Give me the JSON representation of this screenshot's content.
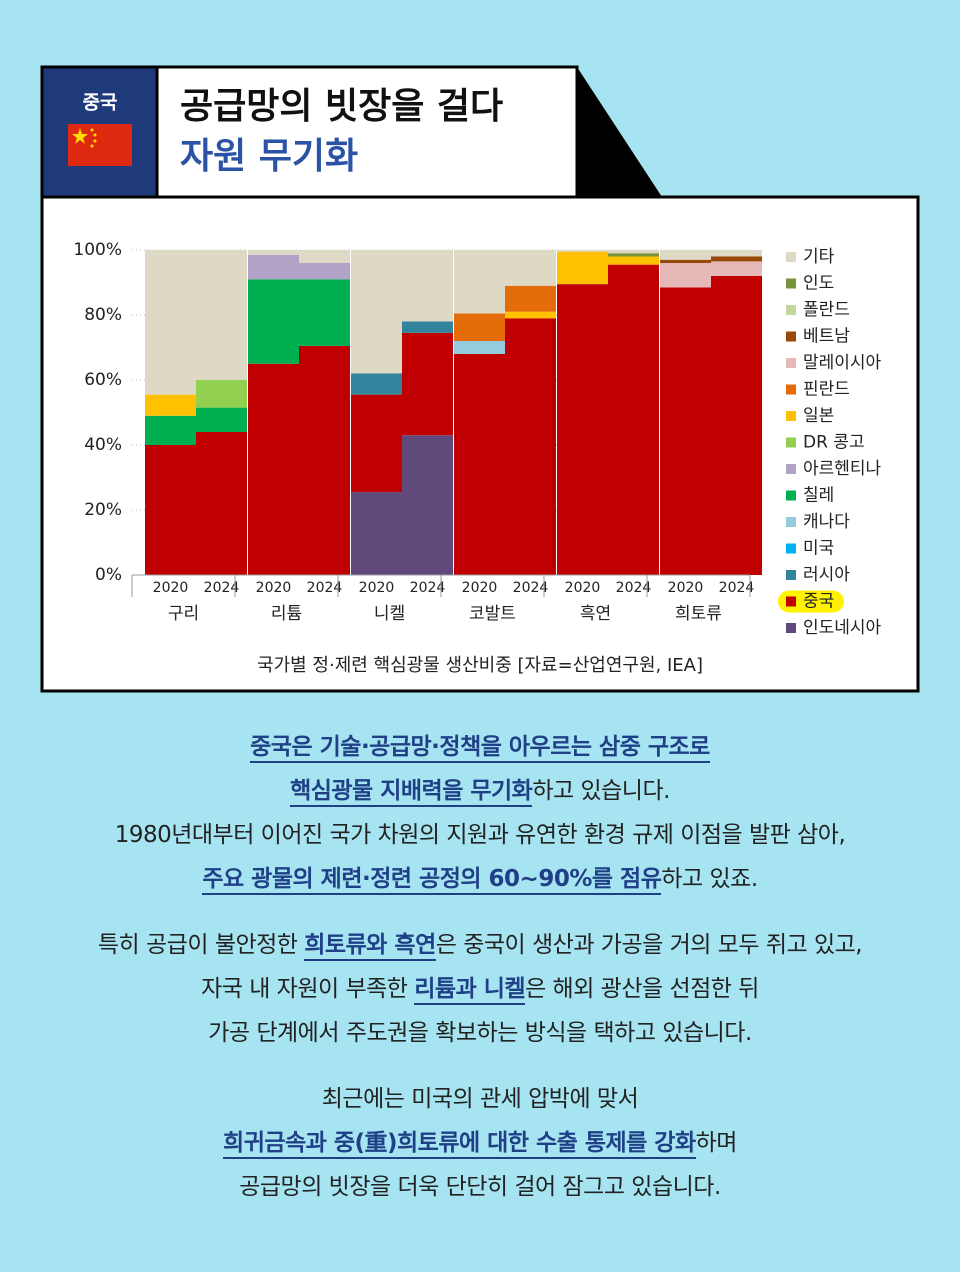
{
  "header": {
    "country": "중국",
    "title": "공급망의 빗장을 걸다",
    "subtitle": "자원 무기화"
  },
  "chart_data": {
    "type": "stacked_bar",
    "categories": [
      "2020",
      "2024",
      "2020",
      "2024",
      "2020",
      "2024",
      "2020",
      "2024",
      "2020",
      "2024",
      "2020",
      "2024"
    ],
    "groups": [
      "구리",
      "리튬",
      "니켈",
      "코발트",
      "흑연",
      "희토류"
    ],
    "caption": "국가별 정·제련 핵심광물 생산비중 [자료=산업연구원, IEA]",
    "ylim": [
      0,
      100
    ],
    "yticks": [
      {
        "value": 0,
        "label": "0%"
      },
      {
        "value": 20,
        "label": "20%"
      },
      {
        "value": 40,
        "label": "40%"
      },
      {
        "value": 60,
        "label": "60%"
      },
      {
        "value": 80,
        "label": "80%"
      },
      {
        "value": 100,
        "label": "100%"
      }
    ],
    "grid": true,
    "legend_position": "right",
    "legend_highlight": 13,
    "series": [
      {
        "name": "기타",
        "color": "#ddd9c4",
        "values": [
          44.5,
          40,
          1.5,
          4,
          38,
          22,
          19.5,
          11,
          0.5,
          1,
          3,
          2
        ]
      },
      {
        "name": "인도",
        "color": "#77933c",
        "values": [
          null,
          null,
          null,
          null,
          null,
          null,
          null,
          null,
          null,
          1,
          null,
          null
        ]
      },
      {
        "name": "폴란드",
        "color": "#c3d69b",
        "values": [
          null,
          null,
          null,
          null,
          null,
          null,
          null,
          null,
          null,
          null,
          null,
          null
        ]
      },
      {
        "name": "베트남",
        "color": "#984807",
        "values": [
          null,
          null,
          null,
          null,
          null,
          null,
          null,
          null,
          null,
          null,
          1,
          1.5
        ]
      },
      {
        "name": "말레이시아",
        "color": "#e6b9b8",
        "values": [
          null,
          null,
          null,
          null,
          null,
          null,
          null,
          null,
          null,
          null,
          7.5,
          4.5
        ]
      },
      {
        "name": "핀란드",
        "color": "#e46c0a",
        "values": [
          null,
          null,
          null,
          null,
          null,
          null,
          8.5,
          8,
          null,
          null,
          null,
          null
        ]
      },
      {
        "name": "일본",
        "color": "#ffc000",
        "values": [
          6.5,
          null,
          null,
          null,
          null,
          null,
          null,
          2,
          10,
          2.5,
          null,
          null
        ]
      },
      {
        "name": "DR 콩고",
        "color": "#92d050",
        "values": [
          null,
          8.5,
          null,
          null,
          null,
          null,
          null,
          null,
          null,
          null,
          null,
          null
        ]
      },
      {
        "name": "아르헨티나",
        "color": "#b3a2c7",
        "values": [
          null,
          null,
          7.5,
          5,
          null,
          null,
          null,
          null,
          null,
          null,
          null,
          null
        ]
      },
      {
        "name": "칠레",
        "color": "#00b050",
        "values": [
          9,
          7.5,
          26,
          20.5,
          null,
          null,
          null,
          null,
          null,
          null,
          null,
          null
        ]
      },
      {
        "name": "캐나다",
        "color": "#93cddd",
        "values": [
          null,
          null,
          null,
          null,
          null,
          null,
          4,
          null,
          null,
          null,
          null,
          null
        ]
      },
      {
        "name": "미국",
        "color": "#00b0f0",
        "values": [
          null,
          null,
          null,
          null,
          null,
          null,
          null,
          null,
          null,
          null,
          null,
          null
        ]
      },
      {
        "name": "러시아",
        "color": "#31849b",
        "values": [
          null,
          null,
          null,
          null,
          6.5,
          3.5,
          null,
          null,
          null,
          null,
          null,
          null
        ]
      },
      {
        "name": "중국",
        "color": "#c00000",
        "values": [
          40,
          44,
          65,
          70.5,
          30,
          31.5,
          68,
          79,
          89.5,
          95.5,
          88.5,
          92
        ]
      },
      {
        "name": "인도네시아",
        "color": "#604a7b",
        "values": [
          null,
          null,
          null,
          null,
          25.5,
          43,
          null,
          null,
          null,
          null,
          null,
          null
        ]
      }
    ]
  },
  "paragraphs": [
    {
      "lines": [
        {
          "runs": [
            {
              "text": "중국은 기술·공급망·정책을 아우르는 삼중 구조로 ",
              "highlight": true
            }
          ]
        },
        {
          "runs": [
            {
              "text": "핵심광물 지배력을 무기화",
              "highlight": true
            },
            "하고 있습니다."
          ]
        },
        {
          "runs": [
            "1980년대부터 이어진 국가 차원의 지원과 유연한 환경 규제 이점을 발판 삼아,"
          ]
        },
        {
          "runs": [
            {
              "text": "주요 광물의 제련·정련 공정의 60~90%를 점유",
              "highlight": true
            },
            "하고 있죠."
          ]
        }
      ]
    },
    {
      "lines": [
        {
          "runs": [
            "특히 공급이 불안정한 ",
            {
              "text": "희토류와 흑연",
              "highlight": true
            },
            "은 중국이 생산과 가공을 거의 모두 쥐고 있고,"
          ]
        },
        {
          "runs": [
            "자국 내 자원이 부족한 ",
            {
              "text": "리튬과 니켈",
              "highlight": true
            },
            "은 해외 광산을 선점한 뒤"
          ]
        },
        {
          "runs": [
            "가공 단계에서 주도권을 확보하는 방식을 택하고 있습니다."
          ]
        }
      ]
    },
    {
      "lines": [
        {
          "runs": [
            "최근에는 미국의 관세 압박에 맞서"
          ]
        },
        {
          "runs": [
            {
              "text": "희귀금속과 중(重)희토류에 대한 수출 통제를 강화",
              "highlight": true
            },
            "하며"
          ]
        },
        {
          "runs": [
            "공급망의 빗장을 더욱 단단히 걸어 잠그고 있습니다."
          ]
        }
      ]
    }
  ]
}
